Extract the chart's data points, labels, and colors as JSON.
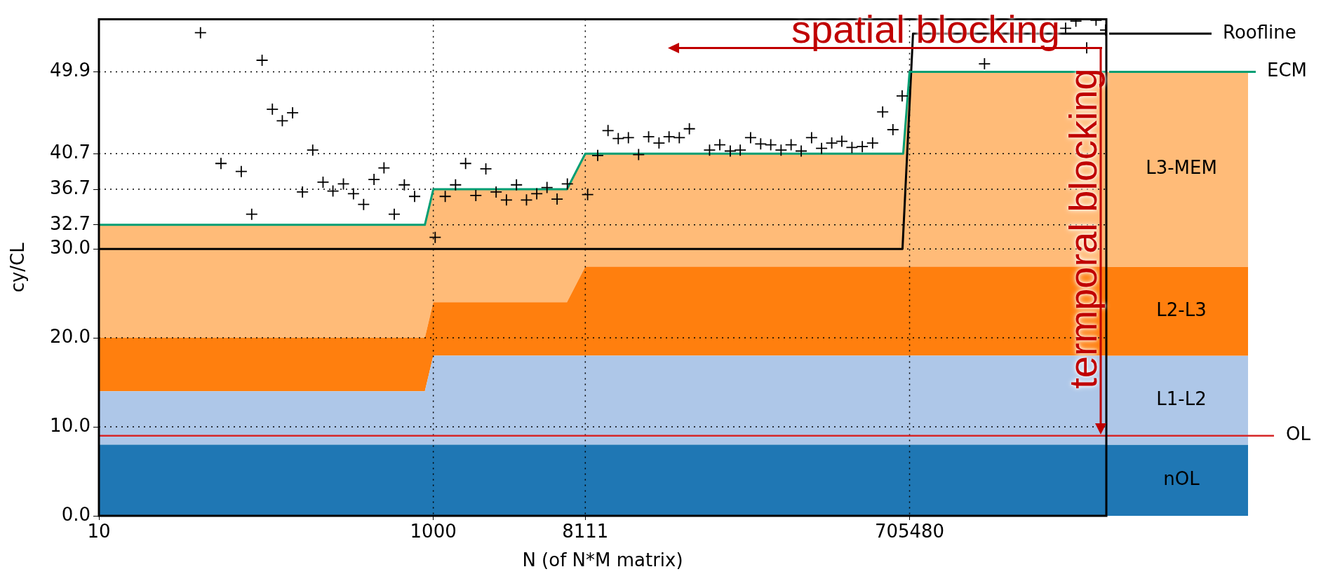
{
  "chart_data": {
    "type": "area",
    "xlabel": "N (of N*M matrix)",
    "ylabel": "cy/CL",
    "log": "x",
    "stacked": true,
    "grid": true,
    "x": [
      10,
      890,
      1000,
      6300,
      8111,
      646000,
      705480,
      10600000
    ],
    "xlim": [
      10,
      10600000
    ],
    "xticks": [
      10,
      1000,
      8111,
      705480
    ],
    "ylim": [
      0,
      55.8
    ],
    "yticks": [
      {
        "value": 0,
        "label": "0.0"
      },
      {
        "value": 10,
        "label": "10.0"
      },
      {
        "value": 20,
        "label": "20.0"
      },
      {
        "value": 30,
        "label": "30.0"
      },
      32.7,
      36.7,
      40.7,
      49.9
    ],
    "series": [
      {
        "name": "nOL",
        "color": "#1f77b4",
        "values": [
          8,
          8,
          8,
          8,
          8,
          8,
          8,
          8
        ]
      },
      {
        "name": "L1-L2",
        "color": "#aec7e8",
        "values": [
          6,
          6,
          10,
          10,
          10,
          10,
          10,
          10
        ]
      },
      {
        "name": "L2-L3",
        "color": "#ff7f0e",
        "values": [
          6,
          6,
          6,
          6,
          10,
          10,
          10,
          10
        ]
      },
      {
        "name": "L3-MEM",
        "color": "#ffbb78",
        "values": [
          12.7,
          12.7,
          12.7,
          12.7,
          12.7,
          12.7,
          21.9,
          21.9
        ]
      },
      {
        "name": "ECM",
        "type": "line",
        "color": "#009e73",
        "values": [
          32.7,
          32.7,
          36.7,
          36.7,
          40.7,
          40.7,
          49.9,
          49.9
        ]
      },
      {
        "name": "Roofline",
        "type": "line",
        "color": "#000000",
        "x": [
          10,
          640000,
          740000,
          10600000
        ],
        "values": [
          30,
          30,
          54.2,
          54.2
        ]
      },
      {
        "type": "scatter",
        "marker": "cross",
        "color": "#000000",
        "x": [
          40.5,
          94.6,
          109,
          125,
          144,
          53.7,
          71,
          82,
          190,
          165,
          219,
          251,
          290,
          333,
          383,
          442,
          507,
          584,
          671,
          773,
          1026,
          1178,
          1358,
          1560,
          1796,
          2062,
          2375,
          2737,
          3143,
          3608,
          4157,
          4786,
          5500,
          6334,
          8375,
          9620,
          11090,
          12770,
          14680,
          16900,
          19400,
          22380,
          25700,
          29600,
          34000,
          44900,
          51700,
          59700,
          68500,
          79000,
          90800,
          104300,
          120200,
          138000,
          158600,
          183000,
          210000,
          241500,
          277500,
          319000,
          368000,
          424000,
          487000,
          561000,
          637000,
          1980000,
          6050000,
          6970000,
          8090000,
          9200000,
          10500000
        ],
        "values": [
          54.3,
          51.2,
          45.7,
          44.4,
          45.3,
          39.6,
          38.7,
          33.9,
          41.1,
          36.4,
          37.5,
          36.5,
          37.3,
          36.2,
          35.0,
          37.8,
          39.1,
          33.9,
          37.2,
          35.9,
          31.3,
          35.9,
          37.2,
          39.6,
          36.0,
          39.0,
          36.4,
          35.5,
          37.2,
          35.5,
          36.2,
          36.9,
          35.6,
          37.3,
          36.1,
          40.5,
          43.3,
          42.4,
          42.5,
          40.6,
          42.6,
          41.9,
          42.6,
          42.5,
          43.5,
          41.1,
          41.7,
          41.0,
          41.1,
          42.5,
          41.8,
          41.7,
          41.1,
          41.7,
          41.0,
          42.5,
          41.3,
          41.9,
          42.1,
          41.4,
          41.5,
          41.9,
          45.4,
          43.4,
          47.2,
          50.8,
          54.8,
          55.6,
          52.6,
          55.7,
          54.6
        ]
      }
    ],
    "ref_lines": [
      {
        "axis": "y",
        "value": 9,
        "label": "OL",
        "color": "#d62728"
      }
    ],
    "annotations": [
      "spatial blocking",
      "termporal blocking"
    ]
  }
}
